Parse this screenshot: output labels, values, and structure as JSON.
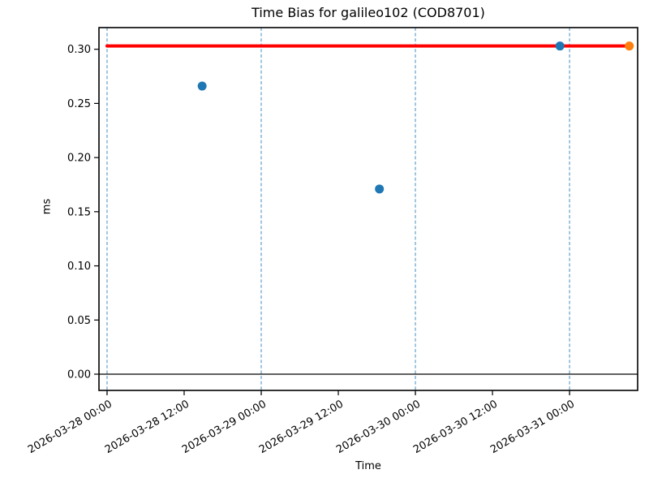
{
  "chart_data": {
    "type": "scatter",
    "title": "Time Bias for galileo102 (COD8701)",
    "xlabel": "Time",
    "ylabel": "ms",
    "x_unit": "datetime",
    "x_origin": "2026-03-28 00:00",
    "x_range_hours": [
      -1.26,
      82.6
    ],
    "ylim": [
      -0.015,
      0.32
    ],
    "x_ticks": [
      {
        "hours": 0,
        "label": "2026-03-28 00:00"
      },
      {
        "hours": 12,
        "label": "2026-03-28 12:00"
      },
      {
        "hours": 24,
        "label": "2026-03-29 00:00"
      },
      {
        "hours": 36,
        "label": "2026-03-29 12:00"
      },
      {
        "hours": 48,
        "label": "2026-03-30 00:00"
      },
      {
        "hours": 60,
        "label": "2026-03-30 12:00"
      },
      {
        "hours": 72,
        "label": "2026-03-31 00:00"
      }
    ],
    "y_ticks": [
      {
        "value": 0.0,
        "label": "0.00"
      },
      {
        "value": 0.05,
        "label": "0.05"
      },
      {
        "value": 0.1,
        "label": "0.10"
      },
      {
        "value": 0.15,
        "label": "0.15"
      },
      {
        "value": 0.2,
        "label": "0.20"
      },
      {
        "value": 0.25,
        "label": "0.25"
      },
      {
        "value": 0.3,
        "label": "0.30"
      }
    ],
    "day_gridlines_hours": [
      0,
      24,
      48,
      72
    ],
    "series": [
      {
        "name": "blue-markers",
        "color": "#1f77b4",
        "points": [
          {
            "time": "2026-03-28 14:45",
            "hours": 14.8,
            "value": 0.266
          },
          {
            "time": "2026-03-29 18:25",
            "hours": 42.4,
            "value": 0.171
          },
          {
            "time": "2026-03-30 22:30",
            "hours": 70.5,
            "value": 0.303
          }
        ]
      },
      {
        "name": "orange-marker",
        "color": "#ff7f0e",
        "points": [
          {
            "time": "2026-03-31 09:20",
            "hours": 81.3,
            "value": 0.303
          }
        ]
      }
    ],
    "reference_line": {
      "value": 0.303,
      "color": "#ff0000",
      "start_hours": 0,
      "end_hours": 81.3
    },
    "zero_line": {
      "value": 0.0,
      "color": "#000000"
    },
    "colors": {
      "gridline": "#6da7ce",
      "axes": "#000000",
      "background": "#ffffff"
    },
    "grid": "vertical-day-lines-only",
    "legend": "none"
  }
}
